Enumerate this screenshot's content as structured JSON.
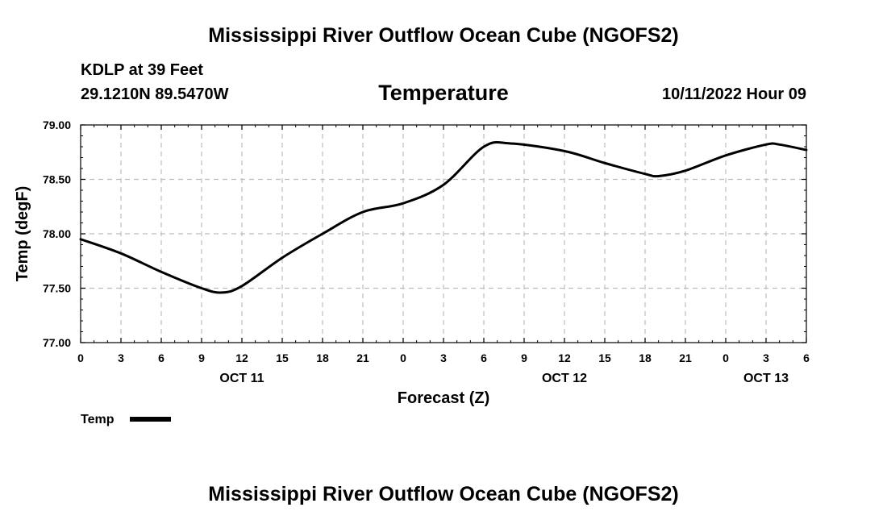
{
  "page": {
    "title_top": "Mississippi River Outflow Ocean Cube (NGOFS2)",
    "title_bottom": "Mississippi River Outflow Ocean Cube (NGOFS2)",
    "station_name": "KDLP at 39 Feet",
    "station_coords": "29.1210N  89.5470W",
    "variable_title": "Temperature",
    "forecast_time": "10/11/2022 Hour 09"
  },
  "chart_data": {
    "type": "line",
    "title": "Temperature",
    "xlabel": "Forecast (Z)",
    "ylabel": "Temp (degF)",
    "xlim": [
      0,
      54
    ],
    "ylim": [
      77.0,
      79.0
    ],
    "x_ticks": [
      0,
      3,
      6,
      9,
      12,
      15,
      18,
      21,
      24,
      27,
      30,
      33,
      36,
      39,
      42,
      45,
      48,
      51,
      54
    ],
    "x_tick_labels": [
      "0",
      "3",
      "6",
      "9",
      "12",
      "15",
      "18",
      "21",
      "0",
      "3",
      "6",
      "9",
      "12",
      "15",
      "18",
      "21",
      "0",
      "3",
      "6"
    ],
    "day_labels": [
      {
        "hour": 12,
        "label": "OCT 11"
      },
      {
        "hour": 36,
        "label": "OCT 12"
      },
      {
        "hour": 51,
        "label": "OCT 13"
      }
    ],
    "y_ticks": [
      77.0,
      77.5,
      78.0,
      78.5,
      79.0
    ],
    "y_tick_labels": [
      "77.00",
      "77.50",
      "78.00",
      "78.50",
      "79.00"
    ],
    "grid": true,
    "legend_position": "bottom-left",
    "series": [
      {
        "name": "Temp",
        "color": "#000000",
        "x": [
          0,
          3,
          6,
          9,
          10.5,
          12,
          15,
          18,
          21,
          24,
          27,
          30,
          32,
          36,
          39,
          42,
          43,
          45,
          48,
          51,
          52,
          54
        ],
        "values": [
          77.95,
          77.82,
          77.65,
          77.5,
          77.46,
          77.52,
          77.78,
          78.0,
          78.2,
          78.28,
          78.45,
          78.8,
          78.83,
          78.76,
          78.65,
          78.55,
          78.53,
          78.58,
          78.72,
          78.82,
          78.82,
          78.77
        ]
      }
    ]
  }
}
